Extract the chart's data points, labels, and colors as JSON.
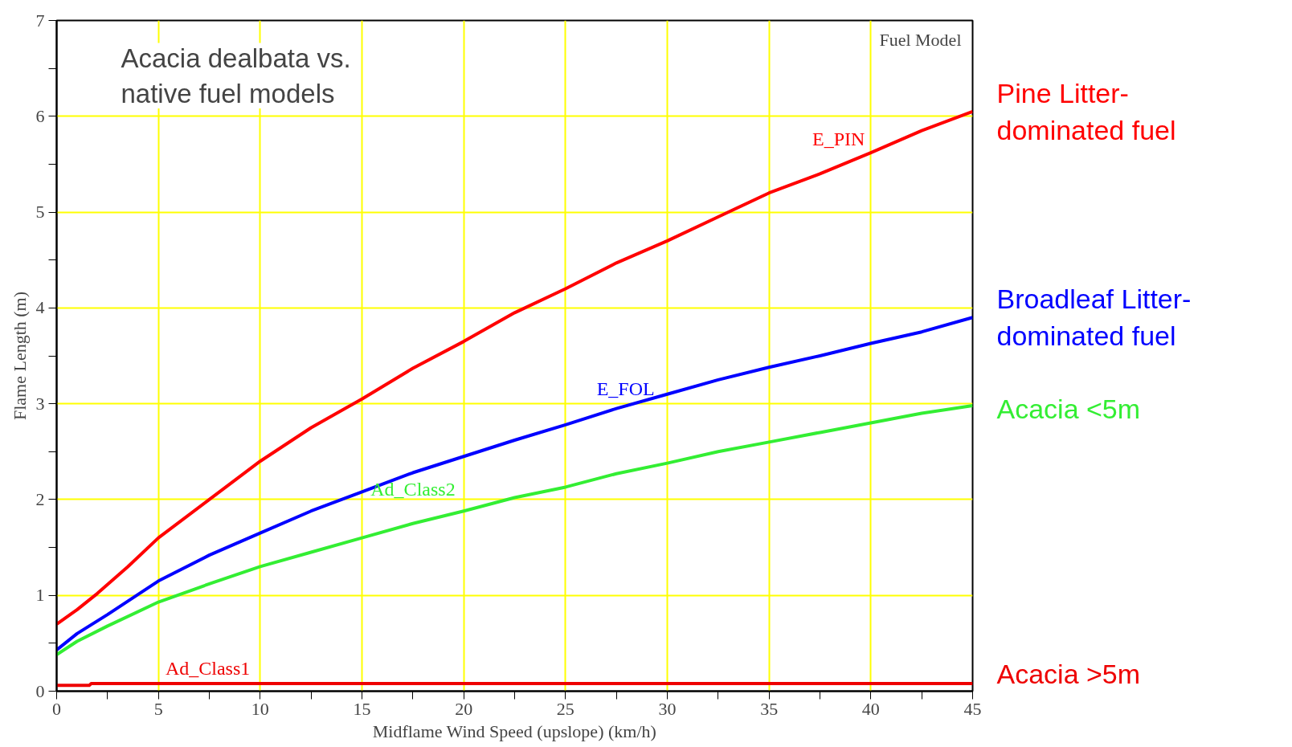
{
  "chart_data": {
    "type": "line",
    "title": "Acacia dealbata vs. native fuel models",
    "legend_title": "Fuel Model",
    "xlabel": "Midflame Wind Speed (upslope) (km/h)",
    "ylabel": "Flame Length (m)",
    "xlim": [
      0,
      45
    ],
    "ylim": [
      0,
      7
    ],
    "xticks": [
      0,
      {
        "value": 2.5,
        "label": null
      },
      5,
      {
        "value": 7.5,
        "label": null
      },
      10,
      {
        "value": 12.5,
        "label": null
      },
      15,
      {
        "value": 17.5,
        "label": null
      },
      20,
      {
        "value": 22.5,
        "label": null
      },
      25,
      {
        "value": 27.5,
        "label": null
      },
      30,
      {
        "value": 32.5,
        "label": null
      },
      35,
      {
        "value": 37.5,
        "label": null
      },
      40,
      {
        "value": 42.5,
        "label": null
      },
      45
    ],
    "yticks": [
      0,
      {
        "value": 0.5,
        "label": null
      },
      1,
      {
        "value": 1.5,
        "label": null
      },
      2,
      {
        "value": 2.5,
        "label": null
      },
      3,
      {
        "value": 3.5,
        "label": null
      },
      4,
      {
        "value": 4.5,
        "label": null
      },
      5,
      {
        "value": 5.5,
        "label": null
      },
      6,
      {
        "value": 6.5,
        "label": null
      },
      7
    ],
    "grid": true,
    "marker": "none",
    "line_style": "solid",
    "series": [
      {
        "name": "E_PIN",
        "color": "#ff0000",
        "x": [
          0,
          1,
          2,
          3.5,
          5,
          7.5,
          10,
          12.5,
          15,
          17.5,
          20,
          22.5,
          25,
          27.5,
          30,
          32.5,
          35,
          37.5,
          40,
          42.5,
          45
        ],
        "values": [
          0.7,
          0.85,
          1.02,
          1.3,
          1.6,
          2.0,
          2.4,
          2.75,
          3.05,
          3.37,
          3.65,
          3.95,
          4.2,
          4.47,
          4.7,
          4.95,
          5.2,
          5.4,
          5.62,
          5.85,
          6.05
        ]
      },
      {
        "name": "E_FOL",
        "color": "#0000ff",
        "x": [
          0,
          1,
          2.5,
          5,
          7.5,
          10,
          12.5,
          15,
          17.5,
          20,
          22.5,
          25,
          27.5,
          30,
          32.5,
          35,
          37.5,
          40,
          42.5,
          45
        ],
        "values": [
          0.43,
          0.6,
          0.8,
          1.15,
          1.42,
          1.65,
          1.88,
          2.08,
          2.28,
          2.45,
          2.62,
          2.78,
          2.95,
          3.1,
          3.25,
          3.38,
          3.5,
          3.63,
          3.75,
          3.9
        ]
      },
      {
        "name": "Ad_Class2",
        "color": "#33ee33",
        "x": [
          0,
          1,
          2.5,
          5,
          7.5,
          10,
          12.5,
          15,
          17.5,
          20,
          22.5,
          25,
          27.5,
          30,
          32.5,
          35,
          37.5,
          40,
          42.5,
          45
        ],
        "values": [
          0.38,
          0.52,
          0.68,
          0.93,
          1.12,
          1.3,
          1.45,
          1.6,
          1.75,
          1.88,
          2.02,
          2.13,
          2.27,
          2.38,
          2.5,
          2.6,
          2.7,
          2.8,
          2.9,
          2.98
        ]
      },
      {
        "name": "Ad_Class1",
        "color": "#ee0000",
        "x": [
          0,
          1.6,
          1.7,
          45
        ],
        "values": [
          0.06,
          0.06,
          0.08,
          0.08
        ]
      }
    ],
    "annotations": [
      "Pine Litter-dominated fuel",
      "Broadleaf Litter-dominated fuel",
      "Acacia <5m",
      "Acacia >5m"
    ]
  }
}
